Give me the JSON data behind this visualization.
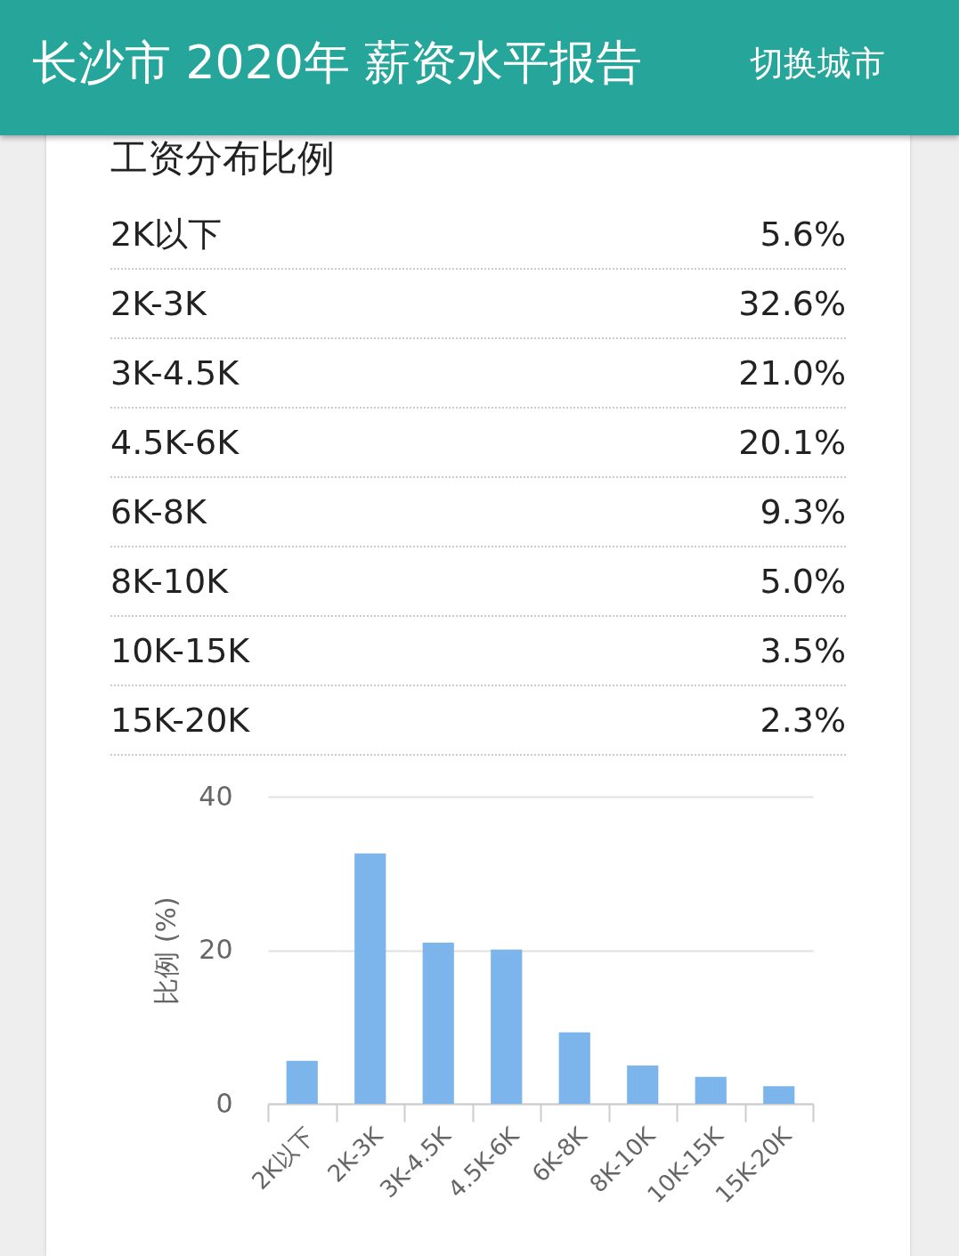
{
  "chart_data": [
    {
      "type": "other",
      "title": "长沙市 2020年 薪资水平报告",
      "subtitle": "工资分布比例",
      "annotations": [
        "切换城市",
        "2K以下",
        "5.6%",
        "2K-3K",
        "32.6%",
        "3K-4.5K",
        "21.0%",
        "4.5K-6K",
        "20.1%",
        "6K-8K",
        "9.3%",
        "8K-10K",
        "5.0%",
        "10K-15K",
        "3.5%",
        "15K-20K",
        "2.3%"
      ]
    },
    {
      "type": "bar",
      "categories": [
        "2K以下",
        "2K-3K",
        "3K-4.5K",
        "4.5K-6K",
        "6K-8K",
        "8K-10K",
        "10K-15K",
        "15K-20K"
      ],
      "values": [
        5.6,
        32.6,
        21.0,
        20.1,
        9.3,
        5.0,
        3.5,
        2.3
      ],
      "color": "#7cb5ec",
      "ylabel": "比例 (%)",
      "ylim": [
        0,
        40
      ],
      "yticks": [
        0,
        20,
        40
      ],
      "grid": "y"
    }
  ]
}
